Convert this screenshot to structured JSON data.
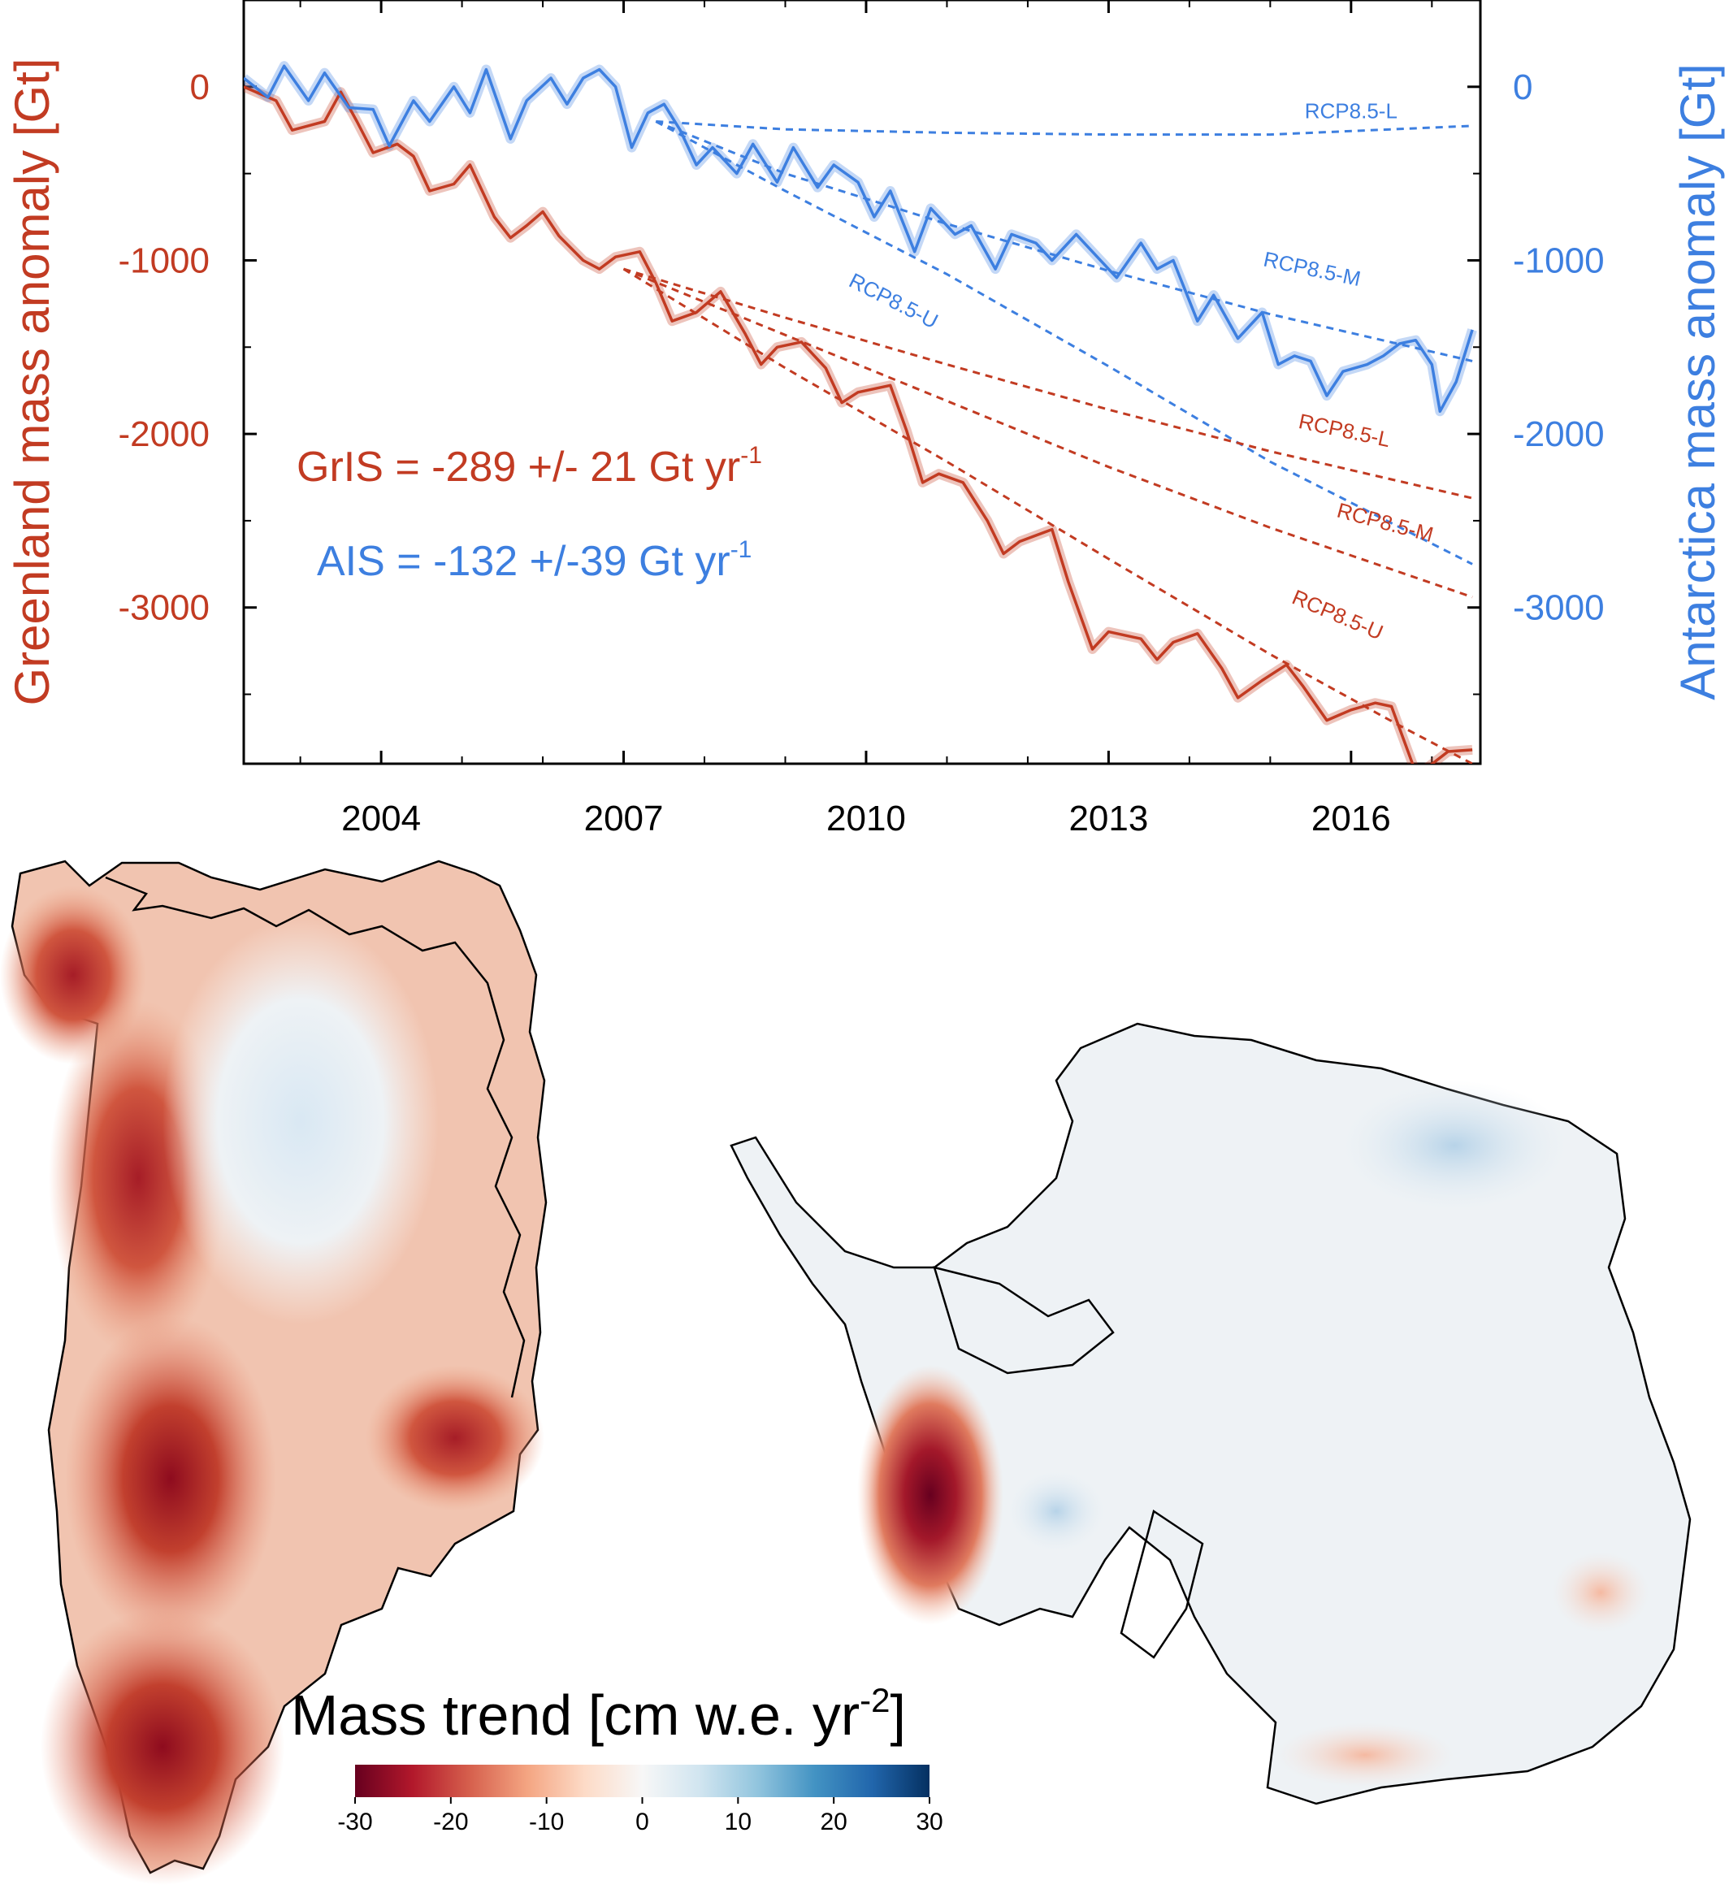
{
  "chart_data": [
    {
      "type": "line",
      "xlabel": "",
      "x_ticks": [
        "2004",
        "2007",
        "2010",
        "2013",
        "2016"
      ],
      "xlim": [
        2002.3,
        2017.6
      ],
      "left_axis": {
        "label": "Greenland mass anomaly [Gt]",
        "color": "#c23b22",
        "ticks": [
          "0",
          "-1000",
          "-2000",
          "-3000"
        ],
        "ylim": [
          -3900,
          500
        ]
      },
      "right_axis": {
        "label": "Antarctica mass anomaly [Gt]",
        "color": "#3d7fe0",
        "ticks": [
          "0",
          "-1000",
          "-2000",
          "-3000"
        ],
        "ylim": [
          -3900,
          500
        ]
      },
      "annotations": {
        "gris": {
          "prefix": "GrIS = -289 +/- 21 Gt yr",
          "sup": "-1"
        },
        "ais": {
          "prefix": "AIS = -132 +/-39 Gt yr",
          "sup": "-1"
        }
      },
      "series": [
        {
          "name": "GrIS",
          "axis": "left",
          "color": "#c23b22",
          "x": [
            2002.3,
            2002.7,
            2002.9,
            2003.3,
            2003.5,
            2003.7,
            2003.9,
            2004.2,
            2004.4,
            2004.6,
            2004.9,
            2005.1,
            2005.4,
            2005.6,
            2005.8,
            2006.0,
            2006.2,
            2006.5,
            2006.7,
            2006.9,
            2007.2,
            2007.4,
            2007.6,
            2007.9,
            2008.2,
            2008.5,
            2008.7,
            2008.9,
            2009.2,
            2009.5,
            2009.7,
            2009.9,
            2010.3,
            2010.5,
            2010.7,
            2010.9,
            2011.2,
            2011.5,
            2011.7,
            2011.9,
            2012.3,
            2012.5,
            2012.8,
            2013.0,
            2013.4,
            2013.6,
            2013.8,
            2014.1,
            2014.4,
            2014.6,
            2014.9,
            2015.2,
            2015.4,
            2015.7,
            2016.0,
            2016.3,
            2016.5,
            2016.8,
            2016.95,
            2017.2,
            2017.5
          ],
          "y": [
            0,
            -80,
            -250,
            -200,
            -30,
            -200,
            -380,
            -330,
            -400,
            -600,
            -560,
            -450,
            -750,
            -870,
            -800,
            -720,
            -860,
            -1000,
            -1050,
            -980,
            -950,
            -1130,
            -1350,
            -1300,
            -1180,
            -1420,
            -1600,
            -1500,
            -1470,
            -1620,
            -1820,
            -1760,
            -1720,
            -1980,
            -2280,
            -2230,
            -2280,
            -2500,
            -2690,
            -2620,
            -2550,
            -2850,
            -3240,
            -3140,
            -3180,
            -3300,
            -3200,
            -3150,
            -3350,
            -3520,
            -3420,
            -3330,
            -3450,
            -3650,
            -3590,
            -3550,
            -3570,
            -3950,
            -3920,
            -3830,
            -3820
          ]
        },
        {
          "name": "AIS",
          "axis": "right",
          "color": "#3d7fe0",
          "x": [
            2002.3,
            2002.6,
            2002.8,
            2003.1,
            2003.3,
            2003.6,
            2003.9,
            2004.1,
            2004.4,
            2004.6,
            2004.9,
            2005.1,
            2005.3,
            2005.6,
            2005.8,
            2006.1,
            2006.3,
            2006.5,
            2006.7,
            2006.9,
            2007.1,
            2007.3,
            2007.5,
            2007.7,
            2007.9,
            2008.1,
            2008.4,
            2008.6,
            2008.9,
            2009.1,
            2009.4,
            2009.6,
            2009.9,
            2010.1,
            2010.3,
            2010.6,
            2010.8,
            2011.1,
            2011.3,
            2011.6,
            2011.8,
            2012.1,
            2012.3,
            2012.6,
            2012.8,
            2013.1,
            2013.4,
            2013.6,
            2013.8,
            2014.1,
            2014.3,
            2014.6,
            2014.9,
            2015.1,
            2015.3,
            2015.5,
            2015.7,
            2015.9,
            2016.2,
            2016.4,
            2016.6,
            2016.8,
            2017.0,
            2017.1,
            2017.3,
            2017.5
          ],
          "y": [
            50,
            -60,
            120,
            -80,
            80,
            -120,
            -130,
            -340,
            -80,
            -200,
            0,
            -150,
            100,
            -300,
            -80,
            50,
            -100,
            50,
            100,
            0,
            -350,
            -150,
            -100,
            -250,
            -450,
            -350,
            -500,
            -330,
            -550,
            -350,
            -580,
            -450,
            -550,
            -750,
            -600,
            -950,
            -700,
            -850,
            -800,
            -1050,
            -850,
            -900,
            -1000,
            -850,
            -950,
            -1100,
            -900,
            -1050,
            -1000,
            -1350,
            -1200,
            -1450,
            -1300,
            -1600,
            -1550,
            -1580,
            -1780,
            -1640,
            -1600,
            -1550,
            -1480,
            -1460,
            -1600,
            -1870,
            -1700,
            -1400
          ]
        },
        {
          "name": "RCP8.5-L",
          "axis": "right",
          "color": "#3d7fe0",
          "style": "dashed",
          "x": [
            2007.4,
            2009,
            2011,
            2013,
            2015,
            2016.5,
            2017.5
          ],
          "y": [
            -200,
            -245,
            -265,
            -275,
            -275,
            -245,
            -225
          ]
        },
        {
          "name": "RCP8.5-M",
          "axis": "right",
          "color": "#3d7fe0",
          "style": "dashed",
          "x": [
            2007.4,
            2009,
            2011,
            2013,
            2015,
            2017.5
          ],
          "y": [
            -200,
            -500,
            -790,
            -1060,
            -1310,
            -1580
          ]
        },
        {
          "name": "RCP8.5-U",
          "axis": "right",
          "color": "#3d7fe0",
          "style": "dashed",
          "x": [
            2007.4,
            2009,
            2011,
            2013,
            2015,
            2017.5
          ],
          "y": [
            -200,
            -600,
            -1080,
            -1610,
            -2160,
            -2750
          ]
        },
        {
          "name": "RCP8.5-L",
          "axis": "left",
          "color": "#c23b22",
          "style": "dashed",
          "x": [
            2007.0,
            2009,
            2011,
            2013,
            2015,
            2017.5
          ],
          "y": [
            -1050,
            -1330,
            -1600,
            -1860,
            -2100,
            -2370
          ]
        },
        {
          "name": "RCP8.5-M",
          "axis": "left",
          "color": "#c23b22",
          "style": "dashed",
          "x": [
            2007.0,
            2009,
            2011,
            2013,
            2015,
            2017.5
          ],
          "y": [
            -1050,
            -1430,
            -1810,
            -2190,
            -2540,
            -2940
          ]
        },
        {
          "name": "RCP8.5-U",
          "axis": "left",
          "color": "#c23b22",
          "style": "dashed",
          "x": [
            2007.0,
            2009,
            2011,
            2013,
            2015,
            2016.6,
            2017.5
          ],
          "y": [
            -1050,
            -1620,
            -2160,
            -2720,
            -3270,
            -3680,
            -3900
          ]
        }
      ],
      "rcp_labels": [
        {
          "text": "RCP8.5-L",
          "axis": "right",
          "x": 2016.0,
          "y": -180,
          "color": "#3d7fe0",
          "rotate": 0
        },
        {
          "text": "RCP8.5-M",
          "axis": "right",
          "x": 2015.5,
          "y": -1090,
          "color": "#3d7fe0",
          "rotate": 12
        },
        {
          "text": "RCP8.5-U",
          "axis": "right",
          "x": 2010.3,
          "y": -1270,
          "color": "#3d7fe0",
          "rotate": 27
        },
        {
          "text": "RCP8.5-L",
          "axis": "left",
          "x": 2015.9,
          "y": -2020,
          "color": "#c23b22",
          "rotate": 12
        },
        {
          "text": "RCP8.5-M",
          "axis": "left",
          "x": 2016.4,
          "y": -2550,
          "color": "#c23b22",
          "rotate": 15
        },
        {
          "text": "RCP8.5-U",
          "axis": "left",
          "x": 2015.8,
          "y": -3080,
          "color": "#c23b22",
          "rotate": 23
        }
      ]
    },
    {
      "type": "heatmap",
      "title_prefix": "Mass trend [cm w.e. yr",
      "title_sup": "-2",
      "title_suffix": "]",
      "colorbar_ticks": [
        "-30",
        "-20",
        "-10",
        "0",
        "10",
        "20",
        "30"
      ],
      "colorbar_range": [
        -30,
        30
      ],
      "colorbar_colors": [
        "#67001f",
        "#b2182b",
        "#d6604d",
        "#f4a582",
        "#fddbc7",
        "#f7f7f7",
        "#d1e5f0",
        "#92c5de",
        "#4393c3",
        "#2166ac",
        "#053061"
      ],
      "regions": [
        "Greenland",
        "Antarctica"
      ]
    }
  ]
}
